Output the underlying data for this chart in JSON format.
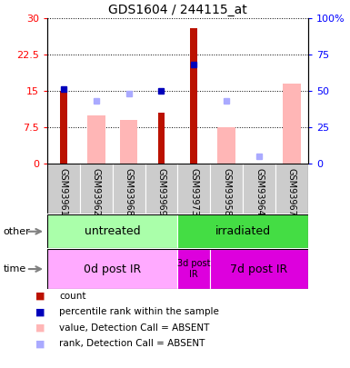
{
  "title": "GDS1604 / 244115_at",
  "samples": [
    "GSM93961",
    "GSM93962",
    "GSM93968",
    "GSM93969",
    "GSM93973",
    "GSM93958",
    "GSM93964",
    "GSM93967"
  ],
  "count_values": [
    15.0,
    0,
    0,
    10.5,
    28.0,
    0,
    0,
    0
  ],
  "value_absent": [
    0,
    10.0,
    9.0,
    0,
    0,
    7.5,
    0,
    16.5
  ],
  "rank_absent_y": [
    0,
    13.0,
    0,
    0,
    0,
    0,
    1.5,
    0
  ],
  "percentile_rank_y": [
    15.5,
    0,
    0,
    15.0,
    20.5,
    0,
    0,
    0
  ],
  "percentile_absent_y": [
    0,
    0,
    14.5,
    0,
    0,
    13.0,
    0,
    0
  ],
  "ylim_left": [
    0,
    30
  ],
  "yticks_left": [
    0,
    7.5,
    15.0,
    22.5,
    30
  ],
  "ytick_labels_left": [
    "0",
    "7.5",
    "15",
    "22.5",
    "30"
  ],
  "yticks_right": [
    0,
    25,
    50,
    75,
    100
  ],
  "ytick_labels_right": [
    "0",
    "25",
    "50",
    "75",
    "100%"
  ],
  "group_other": [
    {
      "label": "untreated",
      "start": 0,
      "end": 4,
      "color": "#aaffaa"
    },
    {
      "label": "irradiated",
      "start": 4,
      "end": 8,
      "color": "#44dd44"
    }
  ],
  "group_time": [
    {
      "label": "0d post IR",
      "start": 0,
      "end": 4,
      "color": "#ffaaff"
    },
    {
      "label": "3d post\nIR",
      "start": 4,
      "end": 5,
      "color": "#dd00dd"
    },
    {
      "label": "7d post IR",
      "start": 5,
      "end": 8,
      "color": "#dd00dd"
    }
  ],
  "color_count": "#bb1100",
  "color_percentile": "#0000bb",
  "color_value_absent": "#ffb6b6",
  "color_rank_absent": "#aaaaff",
  "legend_items": [
    {
      "color": "#bb1100",
      "label": "count"
    },
    {
      "color": "#0000bb",
      "label": "percentile rank within the sample"
    },
    {
      "color": "#ffb6b6",
      "label": "value, Detection Call = ABSENT"
    },
    {
      "color": "#aaaaff",
      "label": "rank, Detection Call = ABSENT"
    }
  ]
}
